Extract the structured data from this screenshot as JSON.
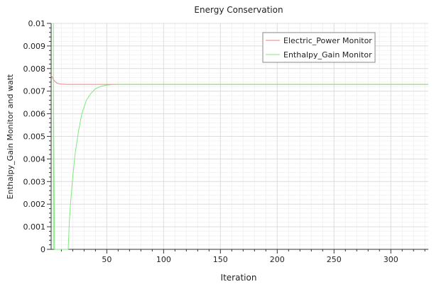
{
  "chart_data": {
    "type": "line",
    "title": "Energy Conservation",
    "xlabel": "Iteration",
    "ylabel": "Enthalpy_Gain Monitor and watt",
    "xlim": [
      1,
      333
    ],
    "ylim": [
      0,
      0.01
    ],
    "x_ticks": [
      50,
      100,
      150,
      200,
      250,
      300
    ],
    "y_ticks": [
      0,
      0.001,
      0.002,
      0.003,
      0.004,
      0.005,
      0.006,
      0.007,
      0.008,
      0.009,
      0.01
    ],
    "x_tick_labels": [
      "50",
      "100",
      "150",
      "200",
      "250",
      "300"
    ],
    "y_tick_labels": [
      "0",
      "0.001",
      "0.002",
      "0.003",
      "0.004",
      "0.005",
      "0.006",
      "0.007",
      "0.008",
      "0.009",
      "0.01"
    ],
    "grid": true,
    "legend_position": "top-right",
    "series": [
      {
        "name": "Electric_Power Monitor",
        "color": "#f08080",
        "x": [
          1,
          2,
          3,
          4,
          5,
          6,
          8,
          10,
          15,
          20,
          30,
          40,
          50,
          333
        ],
        "y": [
          0.0077,
          0.00762,
          0.00752,
          0.00745,
          0.0074,
          0.00736,
          0.00733,
          0.00731,
          0.0073,
          0.0073,
          0.0073,
          0.0073,
          0.0073,
          0.0073
        ]
      },
      {
        "name": "Enthalpy_Gain Monitor",
        "color": "#7fe87f",
        "x": [
          3,
          3,
          3,
          4,
          5,
          16,
          17,
          18,
          20,
          22,
          25,
          28,
          32,
          36,
          40,
          45,
          50,
          55,
          60,
          65,
          333
        ],
        "y": [
          0.0,
          0.01,
          0.0075,
          0.0,
          0.0,
          0.0,
          0.0012,
          0.002,
          0.0032,
          0.0042,
          0.0052,
          0.006,
          0.0066,
          0.0069,
          0.00711,
          0.00722,
          0.00727,
          0.00729,
          0.0073,
          0.0073,
          0.0073
        ]
      }
    ]
  }
}
